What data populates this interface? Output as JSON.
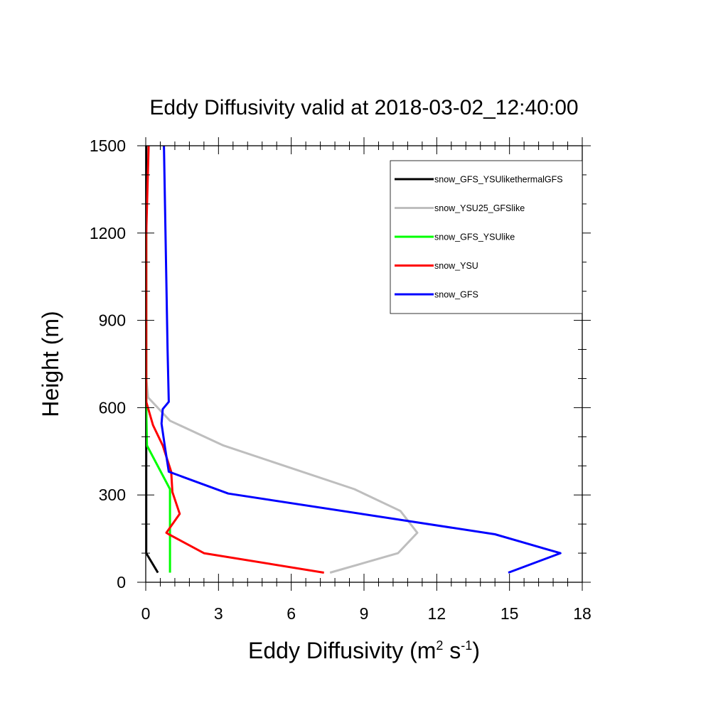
{
  "chart_data": {
    "type": "line",
    "title": "Eddy Diffusivity valid at 2018-03-02_12:40:00",
    "xlabel": {
      "base": "Eddy Diffusivity (m",
      "sup1": "2",
      "mid": " s",
      "sup2": "-1",
      "end": ")"
    },
    "ylabel": "Height (m)",
    "xlim": [
      0,
      18
    ],
    "ylim": [
      0,
      1500
    ],
    "xticks": [
      0,
      3,
      6,
      9,
      12,
      15,
      18
    ],
    "xtick_labels": [
      "0",
      "3",
      "6",
      "9",
      "12",
      "15",
      "18"
    ],
    "yticks": [
      0,
      300,
      600,
      900,
      1200,
      1500
    ],
    "ytick_labels": [
      "0",
      "300",
      "600",
      "900",
      "1200",
      "1500"
    ],
    "grid": false,
    "legend_position": "top-right",
    "series": [
      {
        "name": "snow_GFS_YSUlikethermalGFS",
        "color": "#000000",
        "x": [
          0.5,
          0.02,
          0.02,
          0.02,
          0.02,
          0.02,
          0.02,
          0.02,
          0.02,
          0.02
        ],
        "y": [
          33,
          100,
          160,
          240,
          310,
          380,
          470,
          600,
          1200,
          1500
        ]
      },
      {
        "name": "snow_YSU25_GFSlike",
        "color": "#bebebe",
        "x": [
          7.6,
          10.4,
          11.2,
          10.5,
          8.6,
          3.2,
          1.0,
          0.1,
          0.02,
          0.02
        ],
        "y": [
          33,
          100,
          170,
          245,
          320,
          470,
          555,
          635,
          700,
          1200
        ]
      },
      {
        "name": "snow_GFS_YSUlike",
        "color": "#00ff00",
        "x": [
          1.0,
          1.0,
          1.0,
          1.0,
          0.05,
          0.02,
          0.02
        ],
        "y": [
          33,
          100,
          170,
          320,
          470,
          600,
          1200
        ]
      },
      {
        "name": "snow_YSU",
        "color": "#ff0000",
        "x": [
          7.35,
          2.4,
          0.95,
          0.85,
          1.4,
          1.1,
          1.05,
          0.7,
          0.3,
          0.02,
          0.02,
          0.12
        ],
        "y": [
          33,
          100,
          165,
          170,
          235,
          310,
          380,
          470,
          540,
          620,
          1200,
          1500
        ]
      },
      {
        "name": "snow_GFS",
        "color": "#0000ff",
        "x": [
          14.95,
          17.1,
          14.4,
          3.4,
          0.95,
          0.8,
          0.65,
          0.7,
          0.95,
          0.9,
          0.75
        ],
        "y": [
          33,
          100,
          165,
          305,
          380,
          460,
          545,
          595,
          620,
          800,
          1500
        ]
      }
    ]
  }
}
